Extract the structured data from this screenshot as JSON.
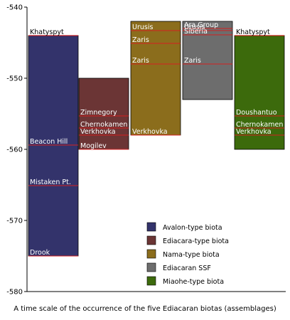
{
  "caption": "A time scale of the occurrence of the five Ediacaran biotas (assemblages)",
  "chart_data": {
    "type": "bar",
    "orientation": "floating-vertical",
    "title": "",
    "xlabel": "",
    "ylabel": "",
    "ylim": [
      -580,
      -540
    ],
    "yticks": [
      -540,
      -550,
      -560,
      -570,
      -580
    ],
    "grid": false,
    "legend_position": "bottom-right",
    "series": [
      {
        "name": "Avalon-type biota",
        "color": "#33336b",
        "range": [
          -575,
          -544
        ],
        "formations": [
          {
            "label": "Khatyspyt",
            "value": -544,
            "line_color": "#cc0000",
            "label_dark": true
          },
          {
            "label": "Beacon Hill",
            "value": -559.4
          },
          {
            "label": "Mistaken Pt.",
            "value": -565.1
          },
          {
            "label": "Drook",
            "value": -575
          }
        ]
      },
      {
        "name": "Ediacara-type biota",
        "color": "#6b3535",
        "range": [
          -560,
          -550
        ],
        "formations": [
          {
            "label": "Zimnegory",
            "value": -555.3
          },
          {
            "label": "Chernokamen",
            "value": -557
          },
          {
            "label": "Verkhovka",
            "value": -558
          },
          {
            "label": "Mogilev",
            "value": -560
          }
        ]
      },
      {
        "name": "Nama-type biota",
        "color": "#8b6d1c",
        "range": [
          -558,
          -542
        ],
        "formations": [
          {
            "label": "Urusis",
            "value": -543.3
          },
          {
            "label": "Zaris",
            "value": -545.1
          },
          {
            "label": "Zaris",
            "value": -548
          },
          {
            "label": "Verkhovka",
            "value": -558
          }
        ]
      },
      {
        "name": "Ediacaran SSF",
        "color": "#6d6d6d",
        "range": [
          -553,
          -542
        ],
        "formations": [
          {
            "label": "Ara Group",
            "value": -543
          },
          {
            "label": "Urusis",
            "value": -543.3
          },
          {
            "label": "Siberia",
            "value": -543.9
          },
          {
            "label": "Zaris",
            "value": -548
          }
        ]
      },
      {
        "name": "Miaohe-type biota",
        "color": "#3c6a0c",
        "range": [
          -560,
          -544
        ],
        "formations": [
          {
            "label": "Khatyspyt",
            "value": -544,
            "line_color": "#cc0000",
            "label_dark": true
          },
          {
            "label": "Doushantuo",
            "value": -555.3
          },
          {
            "label": "Chernokamen",
            "value": -557
          },
          {
            "label": "Verkhovka",
            "value": -558
          }
        ]
      }
    ]
  }
}
